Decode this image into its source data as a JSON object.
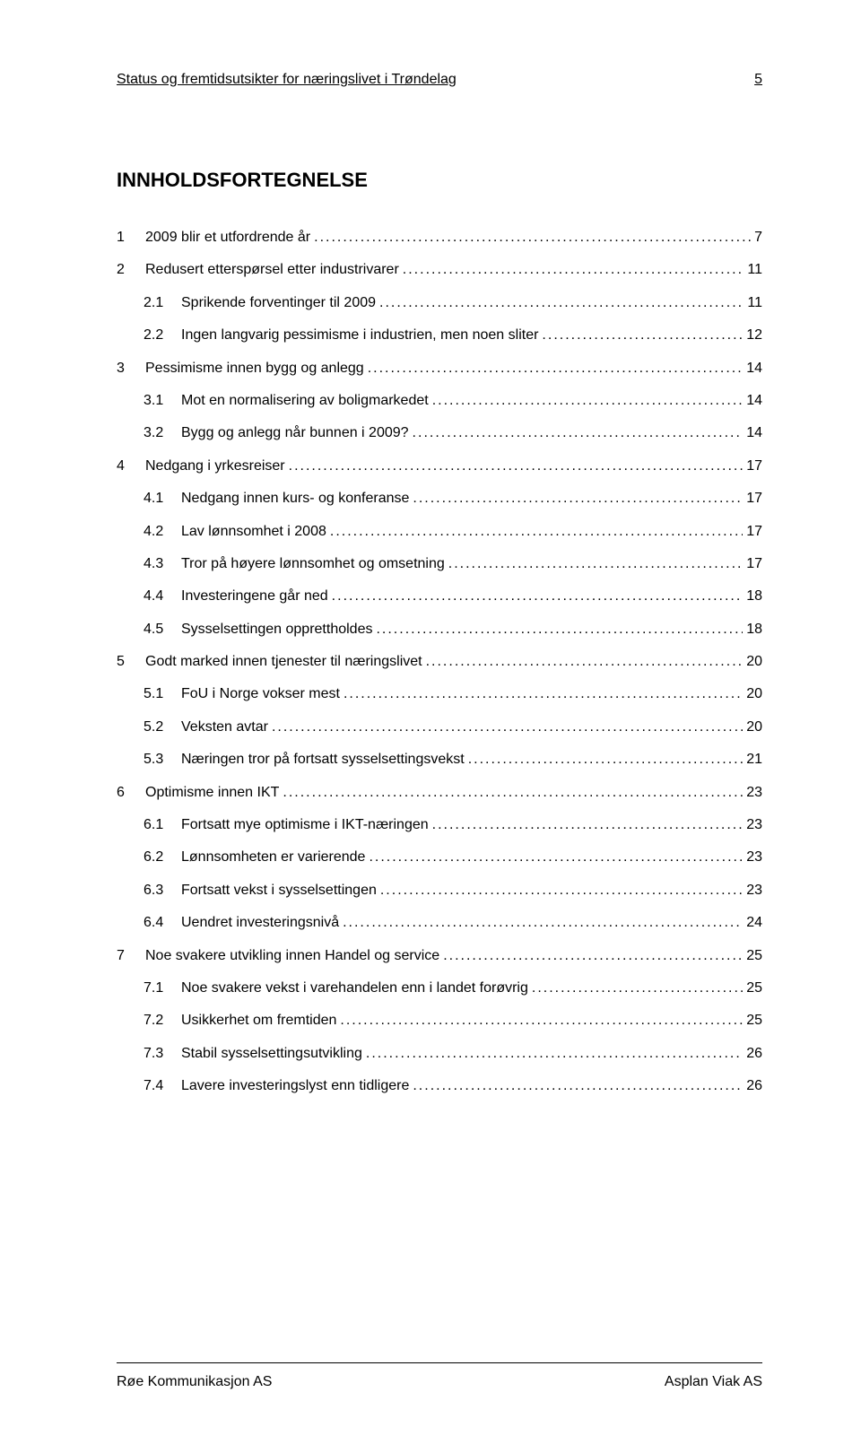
{
  "header": {
    "title": "Status og fremtidsutsikter for næringslivet i Trøndelag",
    "page_number": "5"
  },
  "toc_title": "INNHOLDSFORTEGNELSE",
  "toc": [
    {
      "level": 1,
      "num": "1",
      "label": "2009 blir et utfordrende år",
      "page": "7"
    },
    {
      "level": 1,
      "num": "2",
      "label": "Redusert etterspørsel etter industrivarer",
      "page": "11"
    },
    {
      "level": 2,
      "num": "2.1",
      "label": "Sprikende forventinger til 2009",
      "page": "11"
    },
    {
      "level": 2,
      "num": "2.2",
      "label": "Ingen langvarig pessimisme i industrien, men noen sliter",
      "page": "12"
    },
    {
      "level": 1,
      "num": "3",
      "label": "Pessimisme innen bygg og anlegg",
      "page": "14"
    },
    {
      "level": 2,
      "num": "3.1",
      "label": "Mot en normalisering av boligmarkedet",
      "page": "14"
    },
    {
      "level": 2,
      "num": "3.2",
      "label": "Bygg og anlegg når bunnen i 2009?",
      "page": "14"
    },
    {
      "level": 1,
      "num": "4",
      "label": "Nedgang i yrkesreiser",
      "page": "17"
    },
    {
      "level": 2,
      "num": "4.1",
      "label": "Nedgang innen kurs- og konferanse",
      "page": "17"
    },
    {
      "level": 2,
      "num": "4.2",
      "label": "Lav lønnsomhet i 2008",
      "page": "17"
    },
    {
      "level": 2,
      "num": "4.3",
      "label": "Tror på høyere lønnsomhet og omsetning",
      "page": "17"
    },
    {
      "level": 2,
      "num": "4.4",
      "label": "Investeringene går ned",
      "page": "18"
    },
    {
      "level": 2,
      "num": "4.5",
      "label": "Sysselsettingen opprettholdes",
      "page": "18"
    },
    {
      "level": 1,
      "num": "5",
      "label": "Godt marked innen tjenester til næringslivet",
      "page": "20"
    },
    {
      "level": 2,
      "num": "5.1",
      "label": "FoU i Norge vokser mest",
      "page": "20"
    },
    {
      "level": 2,
      "num": "5.2",
      "label": "Veksten avtar",
      "page": "20"
    },
    {
      "level": 2,
      "num": "5.3",
      "label": "Næringen tror på fortsatt sysselsettingsvekst",
      "page": "21"
    },
    {
      "level": 1,
      "num": "6",
      "label": "Optimisme innen IKT",
      "page": "23"
    },
    {
      "level": 2,
      "num": "6.1",
      "label": "Fortsatt mye optimisme i IKT-næringen",
      "page": "23"
    },
    {
      "level": 2,
      "num": "6.2",
      "label": "Lønnsomheten er varierende",
      "page": "23"
    },
    {
      "level": 2,
      "num": "6.3",
      "label": "Fortsatt vekst i sysselsettingen",
      "page": "23"
    },
    {
      "level": 2,
      "num": "6.4",
      "label": "Uendret investeringsnivå",
      "page": "24"
    },
    {
      "level": 1,
      "num": "7",
      "label": "Noe svakere utvikling innen Handel og service",
      "page": "25"
    },
    {
      "level": 2,
      "num": "7.1",
      "label": "Noe svakere vekst i varehandelen enn i landet forøvrig",
      "page": "25"
    },
    {
      "level": 2,
      "num": "7.2",
      "label": "Usikkerhet om fremtiden",
      "page": "25"
    },
    {
      "level": 2,
      "num": "7.3",
      "label": "Stabil sysselsettingsutvikling",
      "page": "26"
    },
    {
      "level": 2,
      "num": "7.4",
      "label": "Lavere investeringslyst enn tidligere",
      "page": "26"
    }
  ],
  "footer": {
    "left": "Røe Kommunikasjon AS",
    "right": "Asplan Viak AS"
  }
}
